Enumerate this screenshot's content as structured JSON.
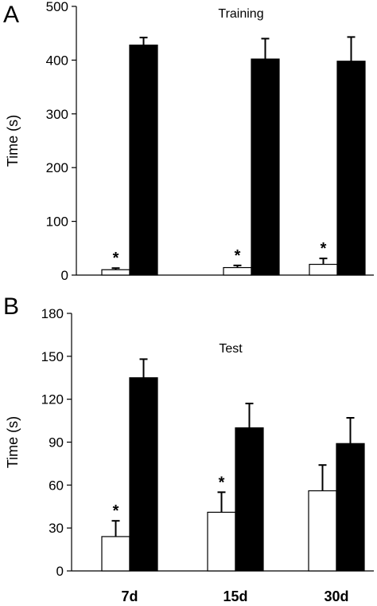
{
  "chart_data": [
    {
      "panel_label": "A",
      "type": "bar",
      "title": "Training",
      "ylabel": "Time (s)",
      "xlabel": "",
      "ylim": [
        0,
        500
      ],
      "yticks": [
        0,
        100,
        200,
        300,
        400,
        500
      ],
      "categories": [
        "7d",
        "15d",
        "30d"
      ],
      "series": [
        {
          "color": "#ffffff",
          "values": [
            10,
            14,
            20
          ],
          "errors": [
            3,
            4,
            11
          ],
          "asterisks": [
            true,
            true,
            true
          ]
        },
        {
          "color": "#000000",
          "values": [
            428,
            402,
            398
          ],
          "errors": [
            14,
            38,
            45
          ],
          "asterisks": [
            false,
            false,
            false
          ]
        }
      ],
      "annotation": "*"
    },
    {
      "panel_label": "B",
      "type": "bar",
      "title": "Test",
      "ylabel": "Time (s)",
      "xlabel": "",
      "ylim": [
        0,
        180
      ],
      "yticks": [
        0,
        30,
        60,
        90,
        120,
        150,
        180
      ],
      "categories": [
        "7d",
        "15d",
        "30d"
      ],
      "series": [
        {
          "color": "#ffffff",
          "values": [
            24,
            41,
            56
          ],
          "errors": [
            11,
            14,
            18
          ],
          "asterisks": [
            true,
            true,
            false
          ]
        },
        {
          "color": "#000000",
          "values": [
            135,
            100,
            89
          ],
          "errors": [
            13,
            17,
            18
          ],
          "asterisks": [
            false,
            false,
            false
          ]
        }
      ],
      "annotation": "*"
    }
  ]
}
